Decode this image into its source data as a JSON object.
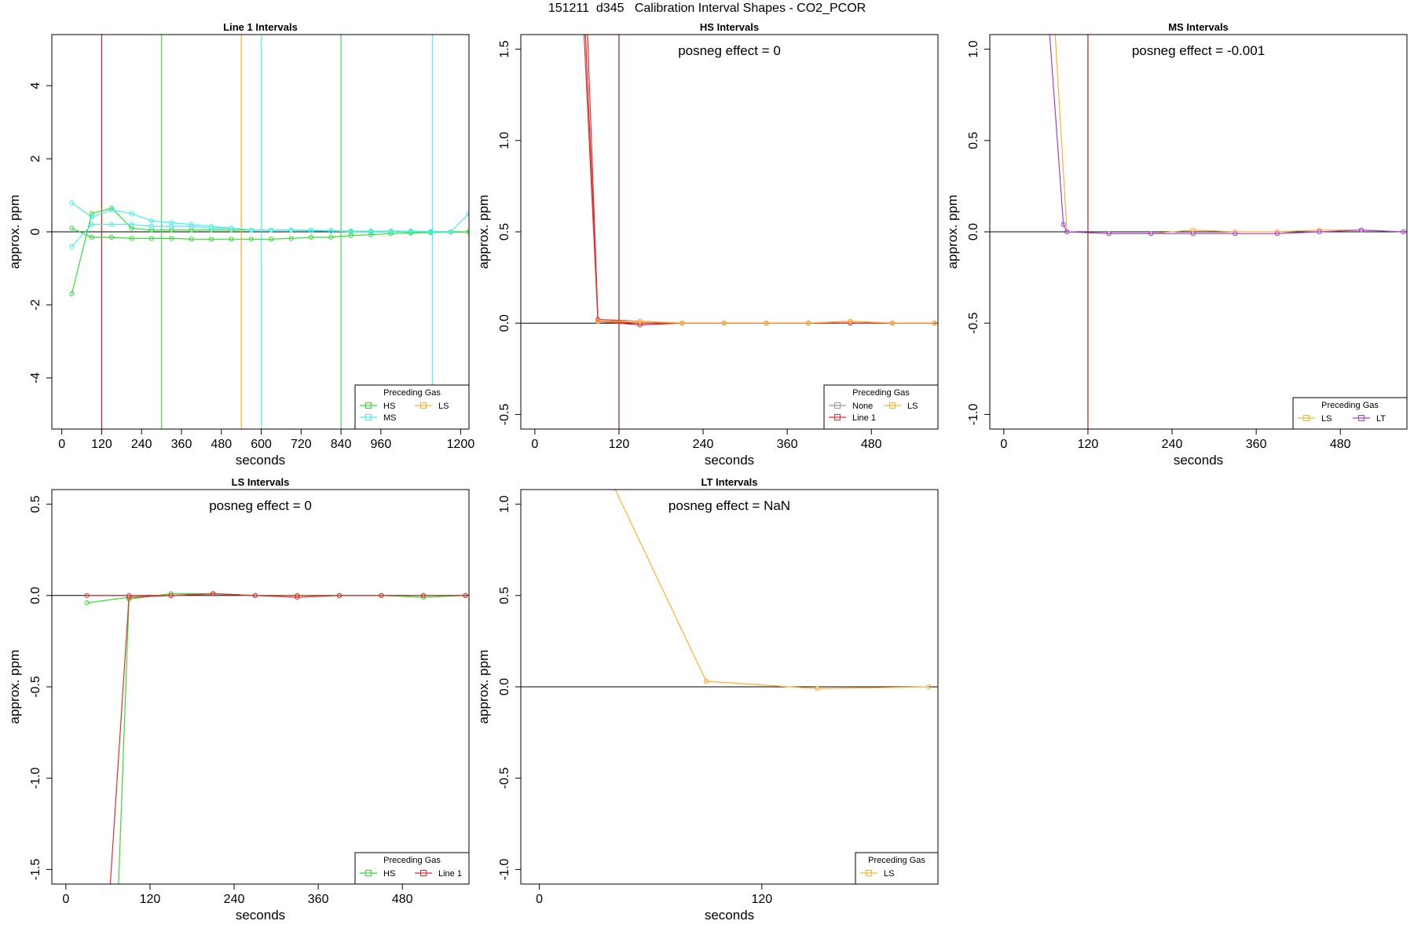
{
  "page": {
    "title": "151211  d345   Calibration Interval Shapes - CO2_PCOR"
  },
  "chart_data": [
    {
      "type": "line",
      "title": "Line 1 Intervals",
      "xlabel": "seconds",
      "ylabel": "approx. ppm",
      "xlim": [
        -30,
        1225
      ],
      "ylim": [
        -5.4,
        5.4
      ],
      "xticks": [
        0,
        120,
        240,
        360,
        480,
        600,
        720,
        840,
        960,
        1200
      ],
      "yticks": [
        -4,
        -2,
        0,
        2,
        4
      ],
      "hline": 0,
      "vlines": [
        {
          "x": 120,
          "color": "#b03030"
        },
        {
          "x": 300,
          "color": "#55e055"
        },
        {
          "x": 540,
          "color": "#ffb030"
        },
        {
          "x": 600,
          "color": "#55f0f0"
        },
        {
          "x": 840,
          "color": "#55e055"
        },
        {
          "x": 1115,
          "color": "#55f0f0"
        }
      ],
      "legend": {
        "title": "Preceding Gas",
        "position": "bottom-right",
        "entries": [
          {
            "label": "HS",
            "color": "#33dd33"
          },
          {
            "label": "LS",
            "color": "#ffb030"
          },
          {
            "label": "MS",
            "color": "#44eeee"
          }
        ]
      },
      "series": [
        {
          "color": "#33dd33",
          "x": [
            30,
            90,
            150,
            210,
            270,
            330,
            390,
            450,
            510,
            570,
            630,
            690,
            750,
            810,
            870,
            930,
            990,
            1050,
            1110,
            1170,
            1225
          ],
          "y": [
            -1.7,
            0.5,
            0.65,
            0.1,
            0.05,
            0.05,
            0.05,
            0.05,
            0.05,
            0.05,
            0.05,
            0.05,
            0.04,
            0.03,
            0.0,
            0.0,
            0.0,
            0.0,
            0.0,
            0.0,
            0.0
          ]
        },
        {
          "color": "#33dd33",
          "x": [
            30,
            90,
            150,
            210,
            270,
            330,
            390,
            450,
            510,
            570,
            630,
            690,
            750,
            810,
            870,
            930,
            990,
            1050,
            1110,
            1170,
            1225
          ],
          "y": [
            0.1,
            -0.15,
            -0.15,
            -0.18,
            -0.18,
            -0.18,
            -0.2,
            -0.2,
            -0.2,
            -0.2,
            -0.2,
            -0.18,
            -0.15,
            -0.15,
            -0.1,
            -0.08,
            -0.05,
            -0.03,
            -0.02,
            -0.01,
            0.0
          ]
        },
        {
          "color": "#44eeee",
          "x": [
            30,
            90,
            150,
            210,
            270,
            330,
            390,
            450,
            510,
            570,
            630,
            690,
            750,
            810,
            870,
            930,
            990,
            1050,
            1110,
            1170,
            1225
          ],
          "y": [
            0.8,
            0.4,
            0.6,
            0.5,
            0.3,
            0.25,
            0.2,
            0.15,
            0.1,
            0.05,
            0.05,
            0.05,
            0.04,
            0.03,
            0.02,
            0.02,
            0.02,
            0.02,
            0.01,
            0.0,
            0.5
          ]
        },
        {
          "color": "#44eeee",
          "x": [
            30,
            90,
            150,
            210,
            270,
            330,
            390,
            450,
            510,
            570,
            630,
            690,
            750,
            810,
            870,
            930,
            990,
            1050,
            1110,
            1170
          ],
          "y": [
            -0.4,
            0.2,
            0.2,
            0.2,
            0.15,
            0.15,
            0.15,
            0.1,
            0.1,
            0.05,
            0.05,
            0.05,
            0.03,
            0.02,
            0.02,
            0.01,
            0.01,
            0.01,
            0.0,
            0.0
          ]
        }
      ]
    },
    {
      "type": "line",
      "title": "HS Intervals",
      "annotation": "posneg effect = 0",
      "xlabel": "seconds",
      "ylabel": "approx. ppm",
      "xlim": [
        -20,
        575
      ],
      "ylim": [
        -0.58,
        1.58
      ],
      "xticks": [
        0,
        120,
        240,
        360,
        480
      ],
      "yticks": [
        -0.5,
        0.0,
        0.5,
        1.0,
        1.5
      ],
      "hline": 0,
      "vlines": [
        {
          "x": 120,
          "color": "#b03030"
        }
      ],
      "legend": {
        "title": "Preceding Gas",
        "position": "bottom-right",
        "entries": [
          {
            "label": "None",
            "color": "#999999"
          },
          {
            "label": "LS",
            "color": "#ffb030"
          },
          {
            "label": "Line 1",
            "color": "#e03030"
          }
        ]
      },
      "series": [
        {
          "color": "#e03030",
          "x": [
            70,
            90,
            150,
            210,
            270,
            330,
            390,
            450,
            510,
            570
          ],
          "y": [
            1.6,
            0.01,
            0.0,
            0.0,
            0.0,
            0.0,
            0.0,
            0.01,
            0.0,
            0.0
          ]
        },
        {
          "color": "#e03030",
          "x": [
            75,
            90,
            150,
            210,
            270,
            330,
            390,
            450,
            510,
            570
          ],
          "y": [
            1.6,
            0.02,
            0.01,
            0.0,
            0.0,
            0.0,
            0.0,
            0.0,
            0.0,
            0.0
          ]
        },
        {
          "color": "#e03030",
          "x": [
            72,
            90,
            150,
            210,
            270,
            330,
            390,
            450,
            510,
            570
          ],
          "y": [
            1.6,
            0.01,
            -0.01,
            0.0,
            0.0,
            0.0,
            0.0,
            0.0,
            0.0,
            0.0
          ]
        },
        {
          "color": "#ffb030",
          "x": [
            90,
            150,
            210,
            270,
            330,
            390,
            450,
            510,
            570
          ],
          "y": [
            0.01,
            0.01,
            0.0,
            0.0,
            0.0,
            0.0,
            0.01,
            0.0,
            0.0
          ]
        }
      ]
    },
    {
      "type": "line",
      "title": "MS Intervals",
      "annotation": "posneg effect = -0.001",
      "xlabel": "seconds",
      "ylabel": "approx. ppm",
      "xlim": [
        -20,
        575
      ],
      "ylim": [
        -1.08,
        1.08
      ],
      "xticks": [
        0,
        120,
        240,
        360,
        480
      ],
      "yticks": [
        -1.0,
        -0.5,
        0.0,
        0.5,
        1.0
      ],
      "hline": 0,
      "vlines": [
        {
          "x": 120,
          "color": "#b03030"
        }
      ],
      "legend": {
        "title": "Preceding Gas",
        "position": "bottom-right",
        "entries": [
          {
            "label": "LS",
            "color": "#ffb030"
          },
          {
            "label": "LT",
            "color": "#a040e0"
          }
        ]
      },
      "series": [
        {
          "color": "#ffb030",
          "x": [
            73,
            90,
            150,
            210,
            270,
            330,
            390,
            450,
            510,
            570
          ],
          "y": [
            1.1,
            0.0,
            -0.01,
            -0.01,
            0.01,
            0.0,
            0.0,
            0.01,
            0.01,
            0.0
          ]
        },
        {
          "color": "#a040e0",
          "x": [
            65,
            85,
            90,
            150,
            210,
            270,
            330,
            390,
            450,
            510,
            570
          ],
          "y": [
            1.1,
            0.04,
            0.0,
            -0.01,
            -0.01,
            -0.01,
            -0.01,
            -0.01,
            0.0,
            0.01,
            0.0
          ]
        }
      ]
    },
    {
      "type": "line",
      "title": "LS Intervals",
      "annotation": "posneg effect = 0",
      "xlabel": "seconds",
      "ylabel": "approx. ppm",
      "xlim": [
        -20,
        575
      ],
      "ylim": [
        -1.58,
        0.58
      ],
      "xticks": [
        0,
        120,
        240,
        360,
        480
      ],
      "yticks": [
        -1.5,
        -1.0,
        -0.5,
        0.0,
        0.5
      ],
      "hline": 0,
      "vlines": [],
      "legend": {
        "title": "Preceding Gas",
        "position": "bottom-right",
        "entries": [
          {
            "label": "HS",
            "color": "#33dd33"
          },
          {
            "label": "Line 1",
            "color": "#e03030"
          }
        ]
      },
      "series": [
        {
          "color": "#33dd33",
          "x": [
            30,
            90,
            150,
            210,
            270,
            330,
            390,
            450,
            510,
            570
          ],
          "y": [
            -0.04,
            -0.01,
            0.0,
            0.01,
            0.0,
            0.0,
            0.0,
            0.0,
            0.0,
            0.0
          ]
        },
        {
          "color": "#33dd33",
          "x": [
            75,
            90,
            150,
            210,
            270,
            330,
            390,
            450,
            510,
            570
          ],
          "y": [
            -1.6,
            -0.02,
            0.01,
            0.01,
            0.0,
            0.0,
            0.0,
            0.0,
            -0.01,
            0.0
          ]
        },
        {
          "color": "#e03030",
          "x": [
            30,
            90,
            150,
            210,
            270,
            330,
            390,
            450,
            510,
            570
          ],
          "y": [
            0.0,
            0.0,
            0.0,
            0.01,
            0.0,
            0.0,
            0.0,
            0.0,
            0.0,
            0.0
          ]
        },
        {
          "color": "#e03030",
          "x": [
            63,
            90,
            150,
            210,
            270,
            330,
            390,
            450,
            510,
            570
          ],
          "y": [
            -1.6,
            -0.01,
            0.0,
            0.01,
            0.0,
            -0.01,
            0.0,
            0.0,
            0.0,
            0.0
          ]
        }
      ]
    },
    {
      "type": "line",
      "title": "LT Intervals",
      "annotation": "posneg effect = NaN",
      "xlabel": "seconds",
      "ylabel": "approx. ppm",
      "xlim": [
        -10,
        215
      ],
      "ylim": [
        -1.08,
        1.08
      ],
      "xticks": [
        0,
        120
      ],
      "yticks": [
        -1.0,
        -0.5,
        0.0,
        0.5,
        1.0
      ],
      "hline": 0,
      "vlines": [],
      "legend": {
        "title": "Preceding Gas",
        "position": "bottom-right",
        "entries": [
          {
            "label": "LS",
            "color": "#ffb030"
          }
        ]
      },
      "series": [
        {
          "color": "#ffb030",
          "x": [
            40,
            90,
            150,
            210
          ],
          "y": [
            1.1,
            0.03,
            -0.01,
            0.0
          ]
        }
      ]
    }
  ]
}
